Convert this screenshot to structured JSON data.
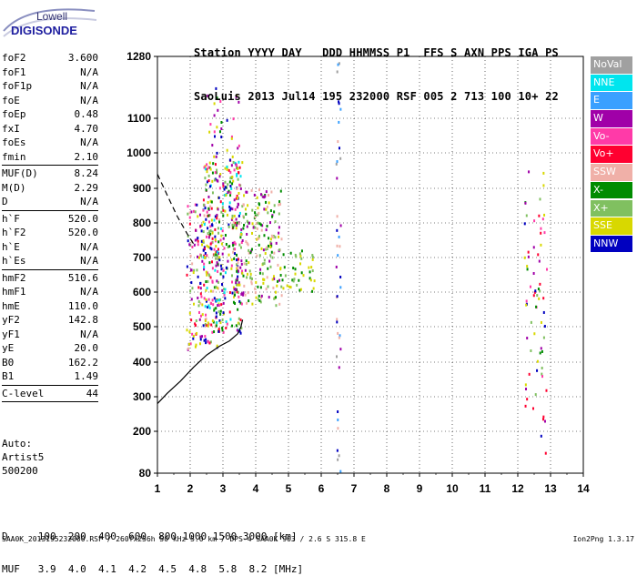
{
  "brand": {
    "name": "Lowell",
    "product": "DIGISONDE"
  },
  "header": {
    "line1": "Station YYYY DAY   DDD HHMMSS P1  FFS S AXN PPS IGA PS",
    "line2": "SaoLuis 2013 Jul14 195 232000 RSF 005 2 713 100 10+ 22"
  },
  "params": [
    {
      "k": "foF2",
      "v": "3.600"
    },
    {
      "k": "foF1",
      "v": "N/A"
    },
    {
      "k": "foF1p",
      "v": "N/A"
    },
    {
      "k": "foE",
      "v": "N/A"
    },
    {
      "k": "foEp",
      "v": "0.48"
    },
    {
      "k": "fxI",
      "v": "4.70"
    },
    {
      "k": "foEs",
      "v": "N/A"
    },
    {
      "k": "fmin",
      "v": "2.10"
    },
    {
      "sep": true
    },
    {
      "k": "MUF(D)",
      "v": "8.24"
    },
    {
      "k": "M(D)",
      "v": "2.29"
    },
    {
      "k": "D",
      "v": "N/A"
    },
    {
      "sep": true
    },
    {
      "k": "h`F",
      "v": "520.0"
    },
    {
      "k": "h`F2",
      "v": "520.0"
    },
    {
      "k": "h`E",
      "v": "N/A"
    },
    {
      "k": "h`Es",
      "v": "N/A"
    },
    {
      "sep": true
    },
    {
      "k": "hmF2",
      "v": "510.6"
    },
    {
      "k": "hmF1",
      "v": "N/A"
    },
    {
      "k": "hmE",
      "v": "110.0"
    },
    {
      "k": "yF2",
      "v": "142.8"
    },
    {
      "k": "yF1",
      "v": "N/A"
    },
    {
      "k": "yE",
      "v": "20.0"
    },
    {
      "k": "B0",
      "v": "162.2"
    },
    {
      "k": "B1",
      "v": "1.49"
    },
    {
      "sep": true
    },
    {
      "k": "C-level",
      "v": "44"
    },
    {
      "sep": true
    }
  ],
  "extra": {
    "auto": "Auto:",
    "artist": "Artist5",
    "version": "500200"
  },
  "legend": [
    {
      "label": "NoVal",
      "color": "#a0a0a0"
    },
    {
      "label": "NNE",
      "color": "#00e5ee"
    },
    {
      "label": "E",
      "color": "#3aa0ff"
    },
    {
      "label": "W",
      "color": "#a000a8"
    },
    {
      "label": "Vo-",
      "color": "#ff3aa8"
    },
    {
      "label": "Vo+",
      "color": "#ff0030"
    },
    {
      "label": "SSW",
      "color": "#f0b0a8"
    },
    {
      "label": "X-",
      "color": "#008c00"
    },
    {
      "label": "X+",
      "color": "#80c060"
    },
    {
      "label": "SSE",
      "color": "#d8d800"
    },
    {
      "label": "NNW",
      "color": "#0000c0"
    }
  ],
  "muf_table": {
    "line1": "D     100  200  400  600  800 1000 1500 3000 [km]",
    "line2": "MUF   3.9  4.0  4.1  4.2  4.5  4.8  5.8  8.2 [MHz]"
  },
  "footer": {
    "left": "SAA0K_2013195232000.RSF / 260fx256h 50 kHz 5.0 km / DPS-4 SAA0K 903 / 2.6 S 315.8 E",
    "right": "Ion2Png 1.3.17"
  },
  "chart_data": {
    "type": "scatter",
    "xlim": [
      1,
      14
    ],
    "ylim": [
      80,
      1280
    ],
    "x_ticks": [
      1,
      2,
      3,
      4,
      5,
      6,
      7,
      8,
      9,
      10,
      11,
      12,
      13,
      14
    ],
    "y_ticks": [
      80,
      200,
      300,
      400,
      500,
      600,
      700,
      800,
      900,
      1000,
      1100,
      1280
    ],
    "grid": true,
    "xlabel": "",
    "ylabel": "",
    "profile_curve": [
      [
        1.0,
        280
      ],
      [
        1.3,
        310
      ],
      [
        1.7,
        345
      ],
      [
        2.1,
        385
      ],
      [
        2.5,
        420
      ],
      [
        2.9,
        445
      ],
      [
        3.2,
        460
      ],
      [
        3.45,
        480
      ],
      [
        3.55,
        500
      ],
      [
        3.6,
        520
      ]
    ],
    "muf_curve": [
      [
        1.0,
        940
      ],
      [
        1.3,
        880
      ],
      [
        1.6,
        820
      ],
      [
        1.9,
        770
      ],
      [
        2.1,
        740
      ]
    ],
    "clusters": [
      {
        "x": [
          1.9,
          2.9
        ],
        "y": [
          430,
          870
        ],
        "n": 170,
        "colors": [
          "#a000a8",
          "#ff3aa8",
          "#d8d800",
          "#f0b0a8",
          "#80c060",
          "#0000c0",
          "#ff0030"
        ]
      },
      {
        "x": [
          2.4,
          3.6
        ],
        "y": [
          480,
          980
        ],
        "n": 330,
        "colors": [
          "#a000a8",
          "#008c00",
          "#d8d800",
          "#ff3aa8",
          "#ff0030",
          "#80c060",
          "#0000c0",
          "#00e5ee"
        ]
      },
      {
        "x": [
          3.3,
          4.8
        ],
        "y": [
          560,
          900
        ],
        "n": 230,
        "colors": [
          "#d8d800",
          "#008c00",
          "#80c060",
          "#a000a8",
          "#f0b0a8"
        ]
      },
      {
        "x": [
          4.8,
          5.8
        ],
        "y": [
          600,
          720
        ],
        "n": 40,
        "colors": [
          "#008c00",
          "#80c060",
          "#d8d800"
        ]
      },
      {
        "x": [
          2.5,
          3.5
        ],
        "y": [
          900,
          1200
        ],
        "n": 40,
        "colors": [
          "#008c00",
          "#a000a8",
          "#d8d800",
          "#ff3aa8",
          "#0000c0"
        ]
      },
      {
        "x": [
          6.45,
          6.6
        ],
        "y": [
          85,
          1270
        ],
        "n": 40,
        "colors": [
          "#a0a0a0",
          "#3aa0ff",
          "#f0b0a8",
          "#0000c0",
          "#a000a8"
        ]
      },
      {
        "x": [
          12.2,
          12.9
        ],
        "y": [
          130,
          960
        ],
        "n": 70,
        "colors": [
          "#d8d800",
          "#a000a8",
          "#008c00",
          "#ff3aa8",
          "#0000c0",
          "#80c060",
          "#ff0030"
        ]
      }
    ]
  }
}
